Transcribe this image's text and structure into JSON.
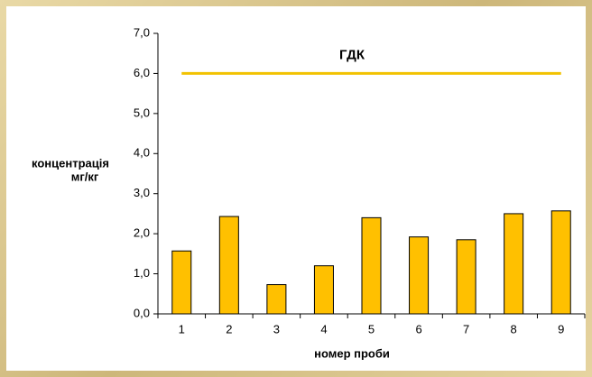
{
  "chart_data": {
    "type": "bar",
    "ylabel": [
      "концентрація",
      "мг/кг"
    ],
    "xlabel": "номер проби",
    "categories": [
      "1",
      "2",
      "3",
      "4",
      "5",
      "6",
      "7",
      "8",
      "9"
    ],
    "values": [
      1.57,
      2.43,
      0.73,
      1.2,
      2.4,
      1.92,
      1.85,
      2.5,
      2.57
    ],
    "color": "#ffc000",
    "ylim": [
      0,
      7
    ],
    "yticks": [
      {
        "value": 0,
        "label": "0,0"
      },
      {
        "value": 1,
        "label": "1,0"
      },
      {
        "value": 2,
        "label": "2,0"
      },
      {
        "value": 3,
        "label": "3,0"
      },
      {
        "value": 4,
        "label": "4,0"
      },
      {
        "value": 5,
        "label": "5,0"
      },
      {
        "value": 6,
        "label": "6,0"
      },
      {
        "value": 7,
        "label": "7,0"
      }
    ],
    "threshold": {
      "value": 6,
      "label": "ГДК",
      "color": "#f2c200"
    },
    "grid": false
  }
}
